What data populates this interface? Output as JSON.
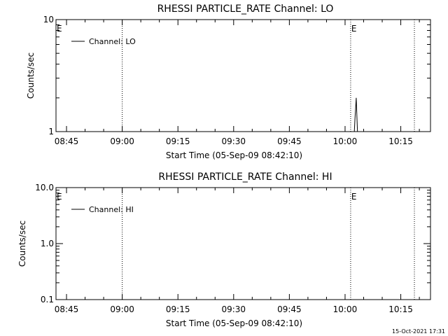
{
  "timestamp": "15-Oct-2021 17:31",
  "chart_data": [
    {
      "type": "line",
      "title": "RHESSI PARTICLE_RATE Channel: LO",
      "xlabel": "Start Time (05-Sep-09 08:42:10)",
      "ylabel": "Counts/sec",
      "y_scale": "log",
      "ylim": [
        1,
        10
      ],
      "xlim": [
        "08:42:10",
        "10:23:00"
      ],
      "x_tick_labels": [
        "08:45",
        "09:00",
        "09:15",
        "09:30",
        "09:45",
        "10:00",
        "10:15"
      ],
      "y_tick_labels": [
        "1",
        "10"
      ],
      "legend": {
        "label": "Channel: LO",
        "position": "top-left"
      },
      "event_markers": [
        {
          "time": "08:42:10",
          "label": "E"
        },
        {
          "time": "10:01:30",
          "label": "E"
        }
      ],
      "dotted_lines": [
        "09:00",
        "10:01:30",
        "10:18:40"
      ],
      "series": [
        {
          "name": "Channel: LO",
          "x": [
            "10:02:30",
            "10:02:40",
            "10:02:50",
            "10:03:00",
            "10:03:10",
            "10:03:20",
            "10:03:30"
          ],
          "y": [
            1,
            1.3,
            1.6,
            2.0,
            1.4,
            1,
            1
          ]
        }
      ]
    },
    {
      "type": "line",
      "title": "RHESSI PARTICLE_RATE Channel: HI",
      "xlabel": "Start Time (05-Sep-09 08:42:10)",
      "ylabel": "Counts/sec",
      "y_scale": "log",
      "ylim": [
        0.1,
        10
      ],
      "xlim": [
        "08:42:10",
        "10:23:00"
      ],
      "x_tick_labels": [
        "08:45",
        "09:00",
        "09:15",
        "09:30",
        "09:45",
        "10:00",
        "10:15"
      ],
      "y_tick_labels": [
        "0.1",
        "1.0",
        "10.0"
      ],
      "legend": {
        "label": "Channel: HI",
        "position": "top-left"
      },
      "event_markers": [
        {
          "time": "08:42:10",
          "label": "E"
        },
        {
          "time": "10:01:30",
          "label": "E"
        }
      ],
      "dotted_lines": [
        "09:00",
        "10:01:30",
        "10:18:40"
      ],
      "series": [
        {
          "name": "Channel: HI",
          "x": [],
          "y": []
        }
      ]
    }
  ]
}
